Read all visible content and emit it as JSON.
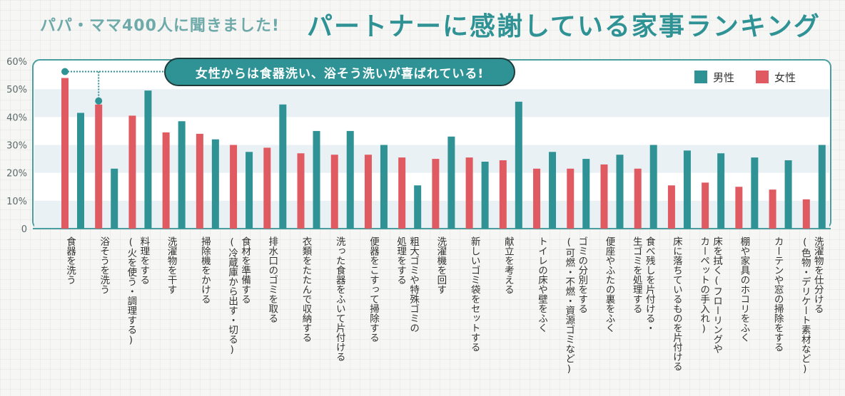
{
  "header": {
    "subtitle": "パパ・ママ400人に聞きました!",
    "title": "パートナーに感謝している家事ランキング"
  },
  "callout": {
    "text": "女性からは食器洗い、浴そう洗いが喜ばれている!"
  },
  "colors": {
    "male": "#2f9395",
    "female": "#e05a62",
    "axis": "#4a9ea0",
    "band": "#e9f1f4"
  },
  "chart_data": {
    "type": "bar",
    "title": "パートナーに感謝している家事ランキング",
    "ylim": [
      0,
      60
    ],
    "yticks": [
      {
        "value": 0,
        "label": "0"
      },
      {
        "value": 10,
        "label": "10%"
      },
      {
        "value": 20,
        "label": "20%"
      },
      {
        "value": 30,
        "label": "30%"
      },
      {
        "value": 40,
        "label": "40%"
      },
      {
        "value": 50,
        "label": "50%"
      },
      {
        "value": 60,
        "label": "60%"
      }
    ],
    "legend": {
      "position": "top-right",
      "male": "男性",
      "female": "女性"
    },
    "categories": [
      [
        "食器を洗う"
      ],
      [
        "浴そうを洗う"
      ],
      [
        "料理をする",
        "(火を使う・調理する)"
      ],
      [
        "洗濯物を干す"
      ],
      [
        "掃除機をかける"
      ],
      [
        "食材を準備する",
        "(冷蔵庫から出す・切る)"
      ],
      [
        "排水口のゴミを取る"
      ],
      [
        "衣類をたたんで収納する"
      ],
      [
        "洗った食器をふいて片付ける"
      ],
      [
        "便器をこすって掃除する"
      ],
      [
        "粗大ゴミや特殊ゴミの",
        "処理をする"
      ],
      [
        "洗濯機を回す"
      ],
      [
        "新しいゴミ袋をセットする"
      ],
      [
        "献立を考える"
      ],
      [
        "トイレの床や壁をふく"
      ],
      [
        "ゴミの分別をする",
        "(可燃・不燃・資源ゴミなど)"
      ],
      [
        "便座やふたの裏をふく"
      ],
      [
        "食べ残しを片付ける・",
        "生ゴミを処理する"
      ],
      [
        "床に落ちているものを片付ける"
      ],
      [
        "床を拭く(フローリングや",
        "カーペットの手入れ)"
      ],
      [
        "棚や家具のホコリをふく"
      ],
      [
        "カーテンや窓の掃除をする"
      ],
      [
        "洗濯物を仕分ける",
        "(色物・デリケート素材など)"
      ]
    ],
    "series": [
      {
        "name": "女性",
        "values": [
          54.0,
          44.5,
          40.5,
          34.5,
          34.0,
          30.0,
          29.0,
          27.0,
          26.5,
          26.5,
          25.5,
          25.0,
          25.5,
          24.5,
          21.5,
          21.5,
          23.0,
          21.5,
          15.5,
          16.5,
          15.0,
          14.0,
          10.5
        ]
      },
      {
        "name": "男性",
        "values": [
          41.5,
          21.5,
          49.5,
          38.5,
          32.0,
          27.5,
          44.5,
          35.0,
          35.0,
          30.0,
          15.5,
          33.0,
          24.0,
          45.5,
          27.5,
          25.0,
          26.5,
          30.0,
          28.0,
          27.0,
          25.5,
          24.5,
          30.0
        ]
      }
    ]
  }
}
